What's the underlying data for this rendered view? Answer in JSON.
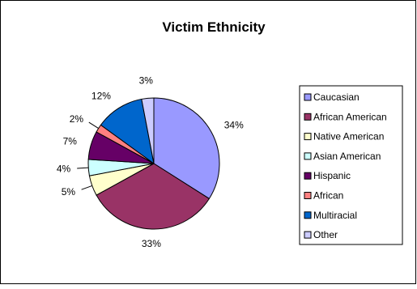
{
  "chart_data": {
    "type": "pie",
    "title": "Victim Ethnicity",
    "legend_position": "right",
    "slices": [
      {
        "label": "Caucasian",
        "value": 34,
        "display": "34%",
        "color": "#9999ff"
      },
      {
        "label": "African American",
        "value": 33,
        "display": "33%",
        "color": "#993366"
      },
      {
        "label": "Native American",
        "value": 5,
        "display": "5%",
        "color": "#ffffcc"
      },
      {
        "label": "Asian American",
        "value": 4,
        "display": "4%",
        "color": "#ccffff"
      },
      {
        "label": "Hispanic",
        "value": 7,
        "display": "7%",
        "color": "#660066"
      },
      {
        "label": "African",
        "value": 2,
        "display": "2%",
        "color": "#ff8080"
      },
      {
        "label": "Multiracial",
        "value": 12,
        "display": "12%",
        "color": "#0066cc"
      },
      {
        "label": "Other",
        "value": 3,
        "display": "3%",
        "color": "#ccccff"
      }
    ]
  }
}
